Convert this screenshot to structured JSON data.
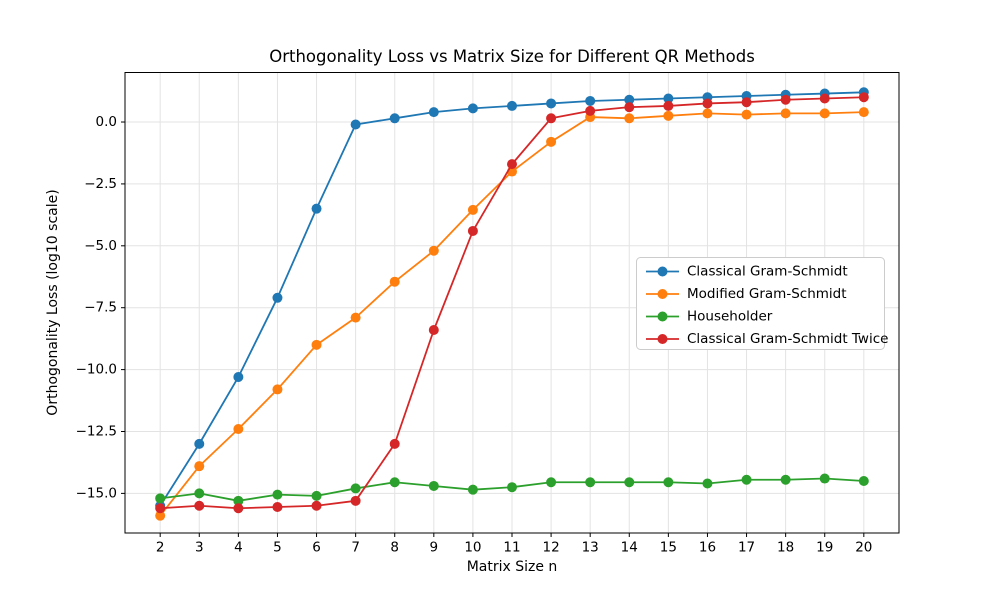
{
  "figure": {
    "background": "#ffffff",
    "axis_color": "#000000",
    "grid_color": "#e3e3e3",
    "legend_border_color": "#cccccc",
    "legend_background": "#ffffff"
  },
  "chart_data": {
    "type": "line",
    "title": "Orthogonality Loss vs Matrix Size for Different QR Methods",
    "xlabel": "Matrix Size n",
    "ylabel": "Orthogonality Loss (log10 scale)",
    "x": [
      2,
      3,
      4,
      5,
      6,
      7,
      8,
      9,
      10,
      11,
      12,
      13,
      14,
      15,
      16,
      17,
      18,
      19,
      20
    ],
    "xlim": [
      1.1,
      20.9
    ],
    "ylim": [
      -16.6,
      2.0
    ],
    "grid": true,
    "legend_position": "center right",
    "xticks": {
      "values": [
        2,
        3,
        4,
        5,
        6,
        7,
        8,
        9,
        10,
        11,
        12,
        13,
        14,
        15,
        16,
        17,
        18,
        19,
        20
      ],
      "labels": [
        "2",
        "3",
        "4",
        "5",
        "6",
        "7",
        "8",
        "9",
        "10",
        "11",
        "12",
        "13",
        "14",
        "15",
        "16",
        "17",
        "18",
        "19",
        "20"
      ]
    },
    "yticks": {
      "values": [
        0.0,
        -2.5,
        -5.0,
        -7.5,
        -10.0,
        -12.5,
        -15.0
      ],
      "labels": [
        "0.0",
        "−2.5",
        "−5.0",
        "−7.5",
        "−10.0",
        "−12.5",
        "−15.0"
      ]
    },
    "series": [
      {
        "name": "Classical Gram-Schmidt",
        "color": "#1f77b4",
        "values": [
          -15.5,
          -13.0,
          -10.3,
          -7.1,
          -3.5,
          -0.1,
          0.15,
          0.4,
          0.55,
          0.65,
          0.75,
          0.85,
          0.9,
          0.95,
          1.0,
          1.05,
          1.1,
          1.15,
          1.2
        ]
      },
      {
        "name": "Modified Gram-Schmidt",
        "color": "#ff7f0e",
        "values": [
          -15.9,
          -13.9,
          -12.4,
          -10.8,
          -9.0,
          -7.9,
          -6.45,
          -5.2,
          -3.55,
          -2.0,
          -0.8,
          0.2,
          0.15,
          0.25,
          0.35,
          0.3,
          0.35,
          0.35,
          0.4
        ]
      },
      {
        "name": "Householder",
        "color": "#2ca02c",
        "values": [
          -15.2,
          -15.0,
          -15.3,
          -15.05,
          -15.1,
          -14.8,
          -14.55,
          -14.7,
          -14.85,
          -14.75,
          -14.55,
          -14.55,
          -14.55,
          -14.55,
          -14.6,
          -14.45,
          -14.45,
          -14.4,
          -14.5
        ]
      },
      {
        "name": "Classical Gram-Schmidt Twice",
        "color": "#d62728",
        "values": [
          -15.6,
          -15.5,
          -15.6,
          -15.55,
          -15.5,
          -15.3,
          -13.0,
          -8.4,
          -4.4,
          -1.7,
          0.15,
          0.45,
          0.6,
          0.65,
          0.75,
          0.8,
          0.9,
          0.95,
          1.0
        ]
      }
    ]
  }
}
